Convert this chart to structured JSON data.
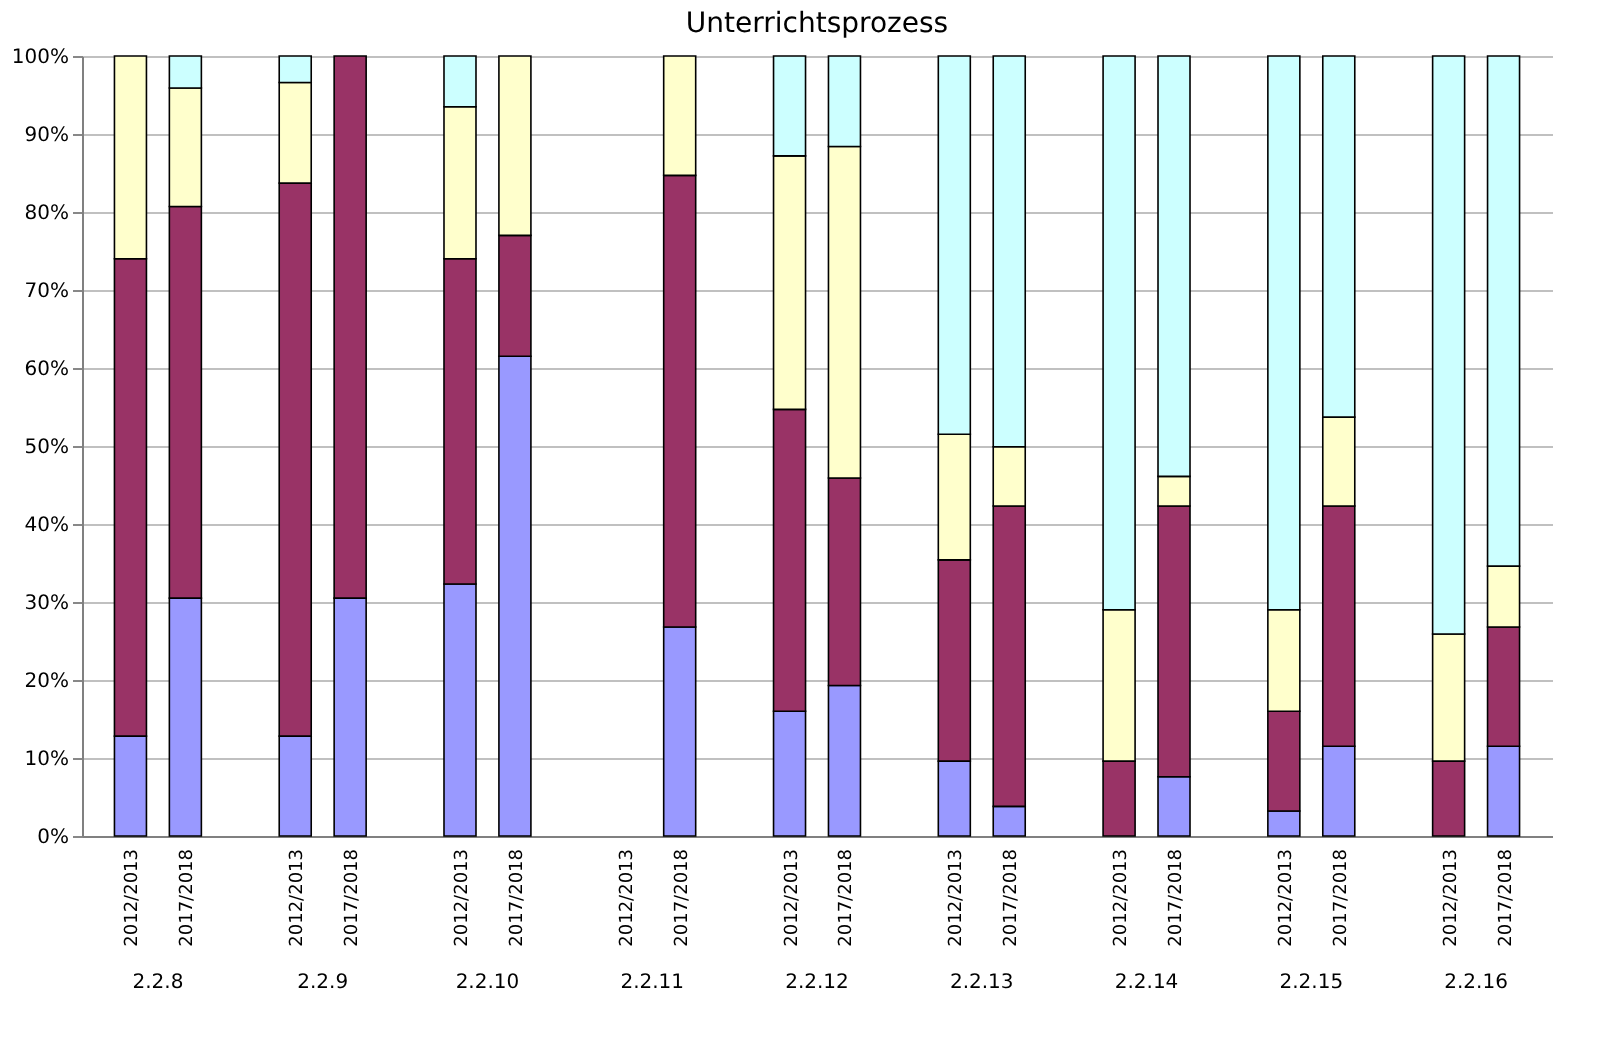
{
  "chart_data": {
    "type": "bar",
    "title": "Unterrichtsprozess",
    "stacked": true,
    "categories": [
      "2012/2013",
      "2017/2018",
      "2012/2013",
      "2017/2018",
      "2012/2013",
      "2017/2018",
      "2012/2013",
      "2017/2018",
      "2012/2013",
      "2017/2018",
      "2012/2013",
      "2017/2018",
      "2012/2013",
      "2017/2018",
      "2012/2013",
      "2017/2018",
      "2012/2013",
      "2017/2018"
    ],
    "annotations": [
      "2.2.8",
      "2.2.9",
      "2.2.10",
      "2.2.11",
      "2.2.12",
      "2.2.13",
      "2.2.14",
      "2.2.15",
      "2.2.16"
    ],
    "series": [
      {
        "color": "#9999ff",
        "values": [
          12.8,
          30.5,
          12.8,
          30.5,
          32.3,
          61.5,
          null,
          26.8,
          16.0,
          19.3,
          9.6,
          3.8,
          null,
          7.6,
          3.2,
          11.5,
          null,
          11.5
        ]
      },
      {
        "color": "#993366",
        "values": [
          61.2,
          50.2,
          70.9,
          69.5,
          41.7,
          15.5,
          null,
          57.9,
          38.7,
          26.6,
          25.8,
          38.5,
          9.6,
          34.7,
          12.8,
          30.8,
          9.6,
          15.3
        ]
      },
      {
        "color": "#ffffcc",
        "values": [
          26.0,
          15.2,
          12.9,
          null,
          19.5,
          23.0,
          null,
          15.3,
          32.5,
          42.5,
          16.1,
          7.6,
          19.4,
          3.8,
          13.0,
          11.4,
          16.3,
          7.8
        ]
      },
      {
        "color": "#ccffff",
        "values": [
          null,
          4.1,
          3.4,
          null,
          6.5,
          null,
          null,
          null,
          12.8,
          11.6,
          48.5,
          50.1,
          71.0,
          53.9,
          71.0,
          46.3,
          74.1,
          65.4
        ]
      }
    ],
    "ylim": [
      0,
      100
    ],
    "yticks": [
      {
        "value": 0,
        "label": "0%"
      },
      {
        "value": 10,
        "label": "10%"
      },
      {
        "value": 20,
        "label": "20%"
      },
      {
        "value": 30,
        "label": "30%"
      },
      {
        "value": 40,
        "label": "40%"
      },
      {
        "value": 50,
        "label": "50%"
      },
      {
        "value": 60,
        "label": "60%"
      },
      {
        "value": 70,
        "label": "70%"
      },
      {
        "value": 80,
        "label": "80%"
      },
      {
        "value": 90,
        "label": "90%"
      },
      {
        "value": 100,
        "label": "100%"
      }
    ],
    "grid": "y"
  }
}
